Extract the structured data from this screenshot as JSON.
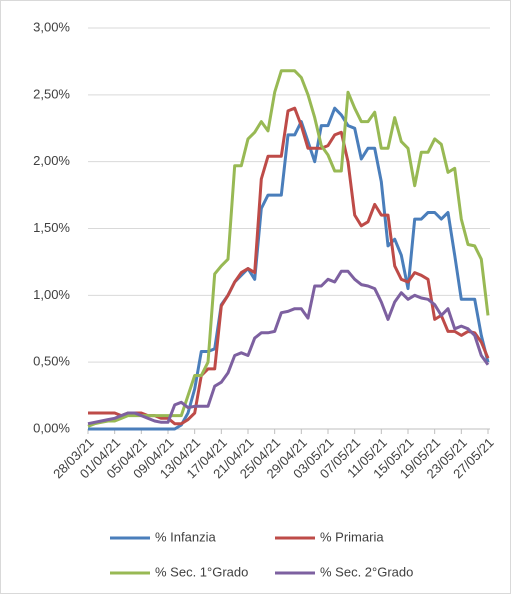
{
  "chart_data": {
    "type": "line",
    "categories": [
      "28/03/21",
      null,
      null,
      null,
      "01/04/21",
      null,
      null,
      null,
      "05/04/21",
      null,
      null,
      null,
      "09/04/21",
      null,
      null,
      null,
      "13/04/21",
      null,
      null,
      null,
      "17/04/21",
      null,
      null,
      null,
      "21/04/21",
      null,
      null,
      null,
      "25/04/21",
      null,
      null,
      null,
      "29/04/21",
      null,
      null,
      null,
      "03/05/21",
      null,
      null,
      null,
      "07/05/21",
      null,
      null,
      null,
      "11/05/21",
      null,
      null,
      null,
      "15/05/21",
      null,
      null,
      null,
      "19/05/21",
      null,
      null,
      null,
      "23/05/21",
      null,
      null,
      null,
      "27/05/21"
    ],
    "series": [
      {
        "name": "% Infanzia",
        "color": "#4a7ebb",
        "values": [
          0,
          0,
          0,
          0,
          0,
          0,
          0,
          0,
          0,
          0,
          0,
          0,
          0,
          0,
          0.03,
          0.12,
          0.3,
          0.58,
          0.58,
          0.6,
          0.93,
          1.0,
          1.1,
          1.15,
          1.2,
          1.12,
          1.65,
          1.75,
          1.75,
          1.75,
          2.2,
          2.2,
          2.3,
          2.15,
          2.0,
          2.27,
          2.27,
          2.4,
          2.35,
          2.27,
          2.25,
          2.02,
          2.1,
          2.1,
          1.85,
          1.37,
          1.42,
          1.3,
          1.05,
          1.57,
          1.57,
          1.62,
          1.62,
          1.57,
          1.62,
          1.3,
          0.97,
          0.97,
          0.97,
          0.7,
          0.5
        ]
      },
      {
        "name": "% Primaria",
        "color": "#be4b48",
        "values": [
          0.12,
          0.12,
          0.12,
          0.12,
          0.12,
          0.1,
          0.12,
          0.12,
          0.12,
          0.1,
          0.1,
          0.08,
          0.08,
          0.04,
          0.04,
          0.07,
          0.12,
          0.4,
          0.45,
          0.45,
          0.92,
          1.0,
          1.1,
          1.17,
          1.2,
          1.17,
          1.87,
          2.04,
          2.04,
          2.04,
          2.38,
          2.4,
          2.27,
          2.1,
          2.1,
          2.1,
          2.12,
          2.2,
          2.22,
          2.0,
          1.6,
          1.52,
          1.55,
          1.68,
          1.6,
          1.6,
          1.22,
          1.12,
          1.1,
          1.17,
          1.15,
          1.12,
          0.82,
          0.85,
          0.73,
          0.73,
          0.7,
          0.73,
          0.72,
          0.65,
          0.53
        ]
      },
      {
        "name": "% Sec. 1°Grado",
        "color": "#98b954",
        "values": [
          0.02,
          0.04,
          0.05,
          0.06,
          0.06,
          0.08,
          0.1,
          0.1,
          0.1,
          0.1,
          0.1,
          0.1,
          0.1,
          0.1,
          0.1,
          0.25,
          0.4,
          0.4,
          0.5,
          1.16,
          1.22,
          1.27,
          1.97,
          1.97,
          2.17,
          2.22,
          2.3,
          2.23,
          2.52,
          2.68,
          2.68,
          2.68,
          2.63,
          2.5,
          2.33,
          2.12,
          2.05,
          1.93,
          1.93,
          2.52,
          2.4,
          2.3,
          2.3,
          2.37,
          2.1,
          2.1,
          2.33,
          2.15,
          2.1,
          1.82,
          2.07,
          2.07,
          2.17,
          2.13,
          1.92,
          1.95,
          1.57,
          1.38,
          1.37,
          1.27,
          0.85
        ]
      },
      {
        "name": "% Sec. 2°Grado",
        "color": "#7d60a0",
        "values": [
          0.04,
          0.05,
          0.06,
          0.07,
          0.08,
          0.1,
          0.12,
          0.12,
          0.1,
          0.08,
          0.06,
          0.05,
          0.05,
          0.18,
          0.2,
          0.16,
          0.17,
          0.17,
          0.17,
          0.32,
          0.35,
          0.42,
          0.55,
          0.57,
          0.55,
          0.68,
          0.72,
          0.72,
          0.73,
          0.87,
          0.88,
          0.9,
          0.9,
          0.83,
          1.07,
          1.07,
          1.12,
          1.1,
          1.18,
          1.18,
          1.12,
          1.08,
          1.07,
          1.05,
          0.95,
          0.82,
          0.95,
          1.02,
          0.97,
          1.0,
          0.98,
          0.97,
          0.93,
          0.85,
          0.9,
          0.75,
          0.77,
          0.75,
          0.7,
          0.55,
          0.48
        ]
      }
    ],
    "ylim": [
      0,
      3
    ],
    "yticks": [
      {
        "value": 0,
        "label": "0,00%"
      },
      {
        "value": 0.5,
        "label": "0,50%"
      },
      {
        "value": 1,
        "label": "1,00%"
      },
      {
        "value": 1.5,
        "label": "1,50%"
      },
      {
        "value": 2,
        "label": "2,00%"
      },
      {
        "value": 2.5,
        "label": "2,50%"
      },
      {
        "value": 3,
        "label": "3,00%"
      }
    ],
    "grid": true,
    "legend": "bottom"
  }
}
